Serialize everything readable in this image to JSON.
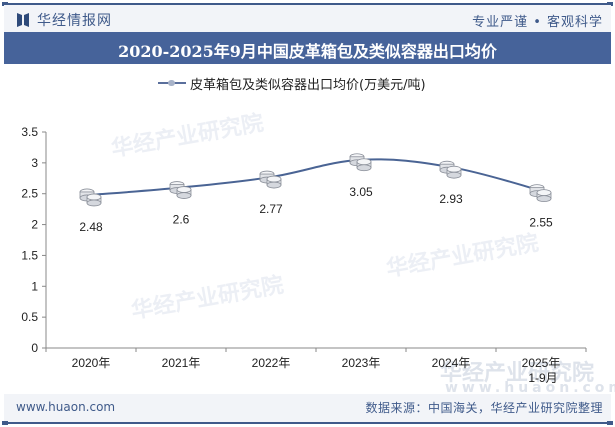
{
  "header": {
    "brand": "华经情报网",
    "slogan": "专业严谨 • 客观科学",
    "title": "2020-2025年9月中国皮革箱包及类似容器出口均价"
  },
  "legend": {
    "label": "皮革箱包及类似容器出口均价(万美元/吨)"
  },
  "footer": {
    "url": "www.huaon.com",
    "source": "数据来源：中国海关，华经产业研究院整理"
  },
  "watermark": {
    "text": "华经产业研究院",
    "url": "www.huaon.com"
  },
  "chart_data": {
    "type": "line",
    "title": "2020-2025年9月中国皮革箱包及类似容器出口均价",
    "xlabel": "",
    "ylabel": "",
    "categories": [
      "2020年",
      "2021年",
      "2022年",
      "2023年",
      "2024年",
      "2025年1-9月"
    ],
    "series": [
      {
        "name": "皮革箱包及类似容器出口均价(万美元/吨)",
        "values": [
          2.48,
          2.6,
          2.77,
          3.05,
          2.93,
          2.55
        ],
        "color": "#4a6494"
      }
    ],
    "data_labels": [
      "2.48",
      "2.6",
      "2.77",
      "3.05",
      "2.93",
      "2.55"
    ],
    "yticks": [
      "0",
      "0.5",
      "1",
      "1.5",
      "2",
      "2.5",
      "3",
      "3.5"
    ],
    "ylim": [
      0,
      3.5
    ],
    "grid": false,
    "legend_position": "top",
    "marker": "coin-stack"
  }
}
